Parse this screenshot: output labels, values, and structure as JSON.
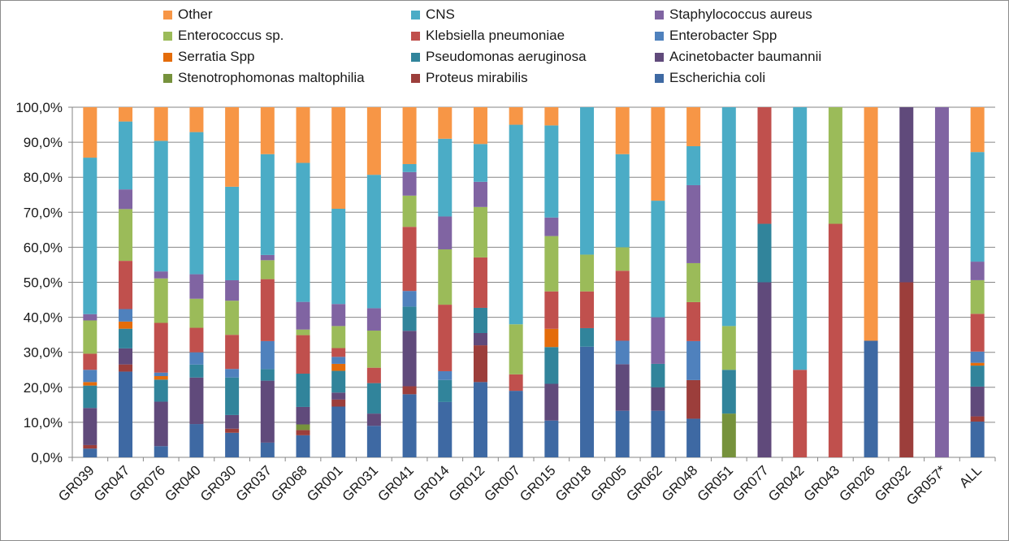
{
  "chart_data": {
    "type": "bar",
    "stacked": true,
    "percent": true,
    "grid": "horizontal",
    "legend_position": "top",
    "ylim": [
      0,
      100
    ],
    "yticks": [
      "0,0%",
      "10,0%",
      "20,0%",
      "30,0%",
      "40,0%",
      "50,0%",
      "60,0%",
      "70,0%",
      "80,0%",
      "90,0%",
      "100,0%"
    ],
    "categories": [
      "GR039",
      "GR047",
      "GR076",
      "GR040",
      "GR030",
      "GR037",
      "GR068",
      "GR001",
      "GR031",
      "GR041",
      "GR014",
      "GR012",
      "GR007",
      "GR015",
      "GR018",
      "GR005",
      "GR062",
      "GR048",
      "GR051",
      "GR077",
      "GR042",
      "GR043",
      "GR026",
      "GR032",
      "GR057*",
      "ALL"
    ],
    "legend_order": [
      "Other",
      "CNS",
      "Staphylococcus aureus",
      "Enterococcus sp.",
      "Klebsiella pneumoniae",
      "Enterobacter Spp",
      "Serratia Spp",
      "Pseudomonas aeruginosa",
      "Acinetobacter baumannii",
      "Stenotrophomonas maltophilia",
      "Proteus mirabilis",
      "Escherichia coli"
    ],
    "series": [
      {
        "name": "Escherichia coli",
        "color": "#3e69a3",
        "values": [
          2.5,
          24,
          3.2,
          9.5,
          7.2,
          4.2,
          6.3,
          14.5,
          9,
          18.2,
          15.8,
          21.5,
          19,
          10.5,
          31.6,
          13.3,
          13.3,
          11,
          0,
          0,
          0,
          0,
          33.3,
          0,
          0,
          10.2
        ]
      },
      {
        "name": "Proteus mirabilis",
        "color": "#9c3e3b",
        "values": [
          1,
          2,
          0,
          0,
          1.2,
          0,
          1.5,
          2,
          0,
          2.3,
          0,
          10.5,
          0,
          0,
          0,
          0,
          0,
          11,
          0,
          0,
          0,
          0,
          0,
          50,
          0,
          1.5
        ]
      },
      {
        "name": "Stenotrophomonas maltophilia",
        "color": "#76923c",
        "values": [
          0,
          0,
          0,
          0,
          0,
          0,
          1.6,
          0,
          0,
          0,
          0,
          0,
          0,
          0,
          0,
          0,
          0,
          0,
          12.5,
          0,
          0,
          0,
          0,
          0,
          0,
          0
        ]
      },
      {
        "name": "Acinetobacter baumannii",
        "color": "#604a7b",
        "values": [
          10.6,
          4.5,
          12.7,
          13.3,
          4,
          17.7,
          5,
          2,
          3.5,
          16,
          0,
          3.5,
          0,
          10.5,
          0,
          13.3,
          6.7,
          0,
          0,
          50,
          0,
          0,
          0,
          50,
          0,
          8.5
        ]
      },
      {
        "name": "Pseudomonas aeruginosa",
        "color": "#31849b",
        "values": [
          6.4,
          5.5,
          6.3,
          3.7,
          11,
          3.3,
          9.5,
          6.2,
          8.7,
          7,
          6.3,
          7.2,
          0,
          10.5,
          5.3,
          0,
          6.7,
          0,
          12.5,
          16.7,
          0,
          0,
          0,
          0,
          0,
          6
        ]
      },
      {
        "name": "Serratia Spp",
        "color": "#e46c0a",
        "values": [
          1,
          2,
          1,
          0,
          0,
          0,
          0,
          2,
          0,
          0,
          0,
          0,
          0,
          5.2,
          0,
          0,
          0,
          0,
          0,
          0,
          0,
          0,
          0,
          0,
          0,
          0.8
        ]
      },
      {
        "name": "Enterobacter Spp",
        "color": "#4f81bd",
        "values": [
          3.5,
          3.5,
          1,
          3.5,
          2.5,
          8,
          0,
          2,
          0,
          4.5,
          2.5,
          0,
          0,
          0,
          0,
          6.7,
          0,
          11.1,
          0,
          0,
          0,
          0,
          0,
          0,
          0,
          3.2
        ]
      },
      {
        "name": "Klebsiella pneumoniae",
        "color": "#c0504d",
        "values": [
          4.6,
          13.5,
          14.2,
          7,
          10,
          17.7,
          11,
          2.5,
          4.4,
          18.5,
          19,
          14.4,
          4.7,
          10.7,
          10.5,
          20,
          0,
          11.1,
          0,
          33.3,
          25,
          66.7,
          0,
          0,
          0,
          10.8
        ]
      },
      {
        "name": "Enterococcus sp.",
        "color": "#9bbb59",
        "values": [
          9.5,
          14.5,
          12.7,
          8.3,
          10,
          5.4,
          1.6,
          6.3,
          10.6,
          9,
          15.8,
          14.4,
          14.3,
          15.8,
          10.5,
          6.7,
          0,
          11.1,
          12.5,
          0,
          0,
          33.3,
          0,
          0,
          0,
          9.6
        ]
      },
      {
        "name": "Staphylococcus aureus",
        "color": "#8064a2",
        "values": [
          1.8,
          5.5,
          2,
          7,
          6,
          1.5,
          7.9,
          6.3,
          6.4,
          6.8,
          9.4,
          7.2,
          0,
          5.3,
          0,
          0,
          13.3,
          22.2,
          0,
          0,
          0,
          0,
          0,
          0,
          100,
          5.3
        ]
      },
      {
        "name": "CNS",
        "color": "#4bacc6",
        "values": [
          44.7,
          19,
          37.3,
          40.6,
          27.4,
          28.8,
          39.7,
          27.2,
          38.1,
          2.3,
          22.2,
          10.8,
          57,
          26.3,
          42.1,
          26.6,
          33.3,
          11.1,
          62.5,
          0,
          75,
          0,
          0,
          0,
          0,
          31.3
        ]
      },
      {
        "name": "Other",
        "color": "#f79646",
        "values": [
          14.4,
          4,
          9.6,
          7.1,
          23.3,
          13.4,
          15.9,
          29,
          19.3,
          16.4,
          9,
          10.5,
          5,
          5.2,
          0,
          13.4,
          26.7,
          11.1,
          0,
          0,
          0,
          0,
          66.7,
          0,
          0,
          12.8
        ]
      }
    ]
  }
}
